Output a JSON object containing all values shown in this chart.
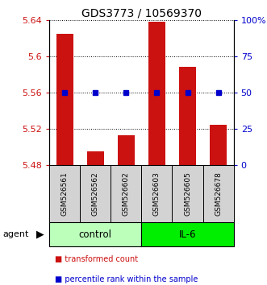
{
  "title": "GDS3773 / 10569370",
  "samples": [
    "GSM526561",
    "GSM526562",
    "GSM526602",
    "GSM526603",
    "GSM526605",
    "GSM526678"
  ],
  "bar_values": [
    5.625,
    5.495,
    5.513,
    5.638,
    5.588,
    5.525
  ],
  "percentile_values": [
    50,
    50,
    50,
    50,
    50,
    50
  ],
  "ylim_left": [
    5.48,
    5.64
  ],
  "ylim_right": [
    0,
    100
  ],
  "yticks_left": [
    5.48,
    5.52,
    5.56,
    5.6,
    5.64
  ],
  "yticks_right": [
    0,
    25,
    50,
    75,
    100
  ],
  "ytick_labels_right": [
    "0",
    "25",
    "50",
    "75",
    "100%"
  ],
  "bar_color": "#cc1111",
  "marker_color": "#0000cc",
  "group_labels": [
    "control",
    "IL-6"
  ],
  "group_ranges": [
    [
      0,
      3
    ],
    [
      3,
      6
    ]
  ],
  "group_colors": [
    "#bbffbb",
    "#00ee00"
  ],
  "sample_box_color": "#d3d3d3",
  "agent_label": "agent",
  "legend_bar_label": "transformed count",
  "legend_marker_label": "percentile rank within the sample",
  "title_fontsize": 10,
  "tick_fontsize": 8,
  "sample_fontsize": 6.5,
  "group_fontsize": 8.5,
  "legend_fontsize": 7
}
